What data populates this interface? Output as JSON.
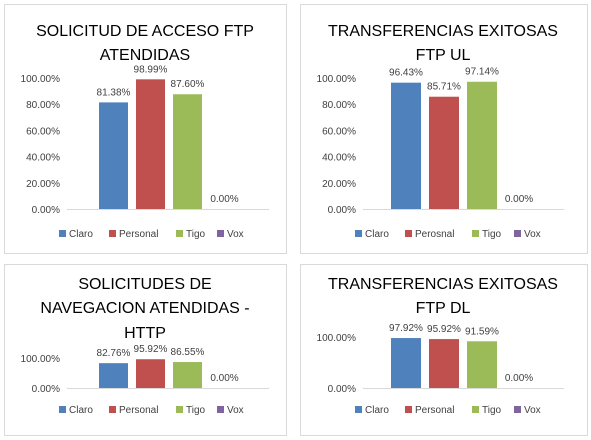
{
  "chart_data": [
    {
      "type": "bar",
      "title": [
        "SOLICITUD DE ACCESO FTP",
        "ATENDIDAS"
      ],
      "series": [
        {
          "name": "Claro",
          "value": 81.38,
          "label": "81.38%",
          "color": "#4f81bd"
        },
        {
          "name": "Personal",
          "value": 98.99,
          "label": "98.99%",
          "color": "#c0504d"
        },
        {
          "name": "Tigo",
          "value": 87.6,
          "label": "87.60%",
          "color": "#9bbb59"
        },
        {
          "name": "Vox",
          "value": 0.0,
          "label": "0.00%",
          "color": "#8064a2"
        }
      ],
      "ylim": [
        0,
        100
      ],
      "yticks": [
        "0.00%",
        "20.00%",
        "40.00%",
        "60.00%",
        "80.00%",
        "100.00%"
      ],
      "grid": false,
      "legend": "bottom"
    },
    {
      "type": "bar",
      "title": [
        "TRANSFERENCIAS EXITOSAS",
        "FTP UL"
      ],
      "series": [
        {
          "name": "Claro",
          "value": 96.43,
          "label": "96.43%",
          "color": "#4f81bd"
        },
        {
          "name": "Perosnal",
          "value": 85.71,
          "label": "85.71%",
          "color": "#c0504d"
        },
        {
          "name": "Tigo",
          "value": 97.14,
          "label": "97.14%",
          "color": "#9bbb59"
        },
        {
          "name": "Vox",
          "value": 0.0,
          "label": "0.00%",
          "color": "#8064a2"
        }
      ],
      "ylim": [
        0,
        100
      ],
      "yticks": [
        "0.00%",
        "20.00%",
        "40.00%",
        "60.00%",
        "80.00%",
        "100.00%"
      ],
      "grid": false,
      "legend": "bottom"
    },
    {
      "type": "bar",
      "title": [
        "SOLICITUDES DE",
        "NAVEGACION ATENDIDAS -",
        "HTTP"
      ],
      "series": [
        {
          "name": "Claro",
          "value": 82.76,
          "label": "82.76%",
          "color": "#4f81bd"
        },
        {
          "name": "Personal",
          "value": 95.92,
          "label": "95.92%",
          "color": "#c0504d"
        },
        {
          "name": "Tigo",
          "value": 86.55,
          "label": "86.55%",
          "color": "#9bbb59"
        },
        {
          "name": "Vox",
          "value": 0.0,
          "label": "0.00%",
          "color": "#8064a2"
        }
      ],
      "ylim": [
        0,
        100
      ],
      "yticks": [
        "0.00%",
        "100.00%"
      ],
      "grid": false,
      "legend": "bottom"
    },
    {
      "type": "bar",
      "title": [
        "TRANSFERENCIAS EXITOSAS",
        "FTP DL"
      ],
      "series": [
        {
          "name": "Claro",
          "value": 97.92,
          "label": "97.92%",
          "color": "#4f81bd"
        },
        {
          "name": "Personal",
          "value": 95.92,
          "label": "95.92%",
          "color": "#c0504d"
        },
        {
          "name": "Tigo",
          "value": 91.59,
          "label": "91.59%",
          "color": "#9bbb59"
        },
        {
          "name": "Vox",
          "value": 0.0,
          "label": "0.00%",
          "color": "#8064a2"
        }
      ],
      "ylim": [
        0,
        100
      ],
      "yticks": [
        "0.00%",
        "100.00%"
      ],
      "grid": false,
      "legend": "bottom"
    }
  ]
}
